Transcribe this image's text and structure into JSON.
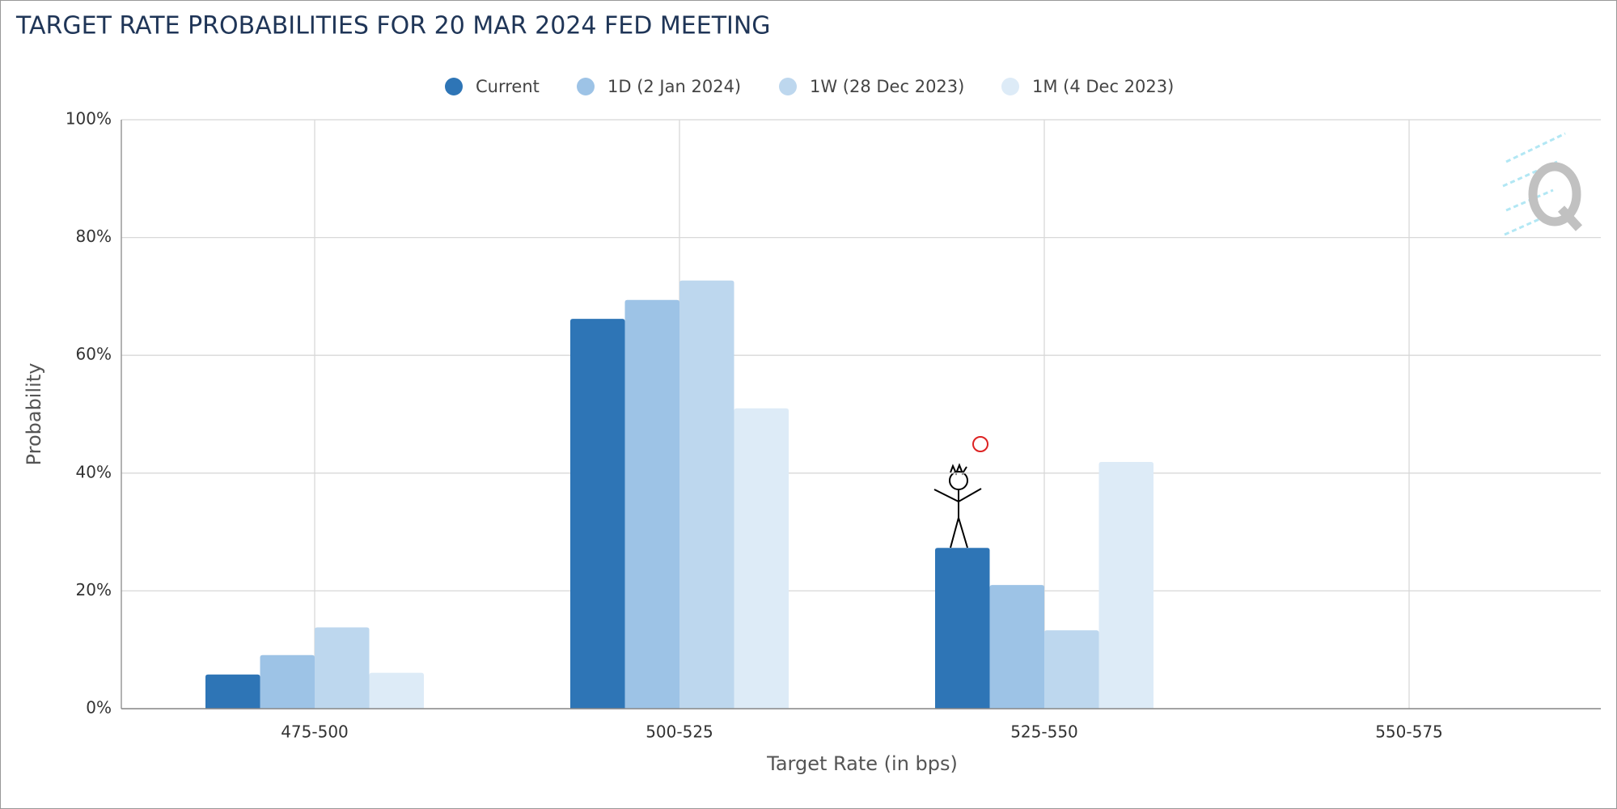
{
  "chart_data": {
    "type": "bar",
    "title": "TARGET RATE PROBABILITIES FOR 20 MAR 2024 FED MEETING",
    "x_label": "Target Rate (in bps)",
    "y_label": "Probability",
    "categories": [
      "475-500",
      "500-525",
      "525-550",
      "550-575"
    ],
    "series": [
      {
        "name": "Current",
        "color": "#2e75b6",
        "values": [
          5.8,
          66.2,
          27.3,
          0
        ]
      },
      {
        "name": "1D (2 Jan 2024)",
        "color": "#9dc3e6",
        "values": [
          9.1,
          69.4,
          21.0,
          0
        ]
      },
      {
        "name": "1W (28 Dec 2023)",
        "color": "#bdd7ee",
        "values": [
          13.8,
          72.7,
          13.3,
          0
        ]
      },
      {
        "name": "1M (4 Dec 2023)",
        "color": "#ddebf7",
        "values": [
          6.1,
          51.0,
          41.9,
          0.1
        ]
      }
    ],
    "ylim": [
      0,
      100
    ],
    "yticks": [
      {
        "value": 0,
        "label": "0%"
      },
      {
        "value": 20,
        "label": "20%"
      },
      {
        "value": 40,
        "label": "40%"
      },
      {
        "value": 60,
        "label": "60%"
      },
      {
        "value": 80,
        "label": "80%"
      },
      {
        "value": 100,
        "label": "100%"
      }
    ],
    "grid": true
  }
}
